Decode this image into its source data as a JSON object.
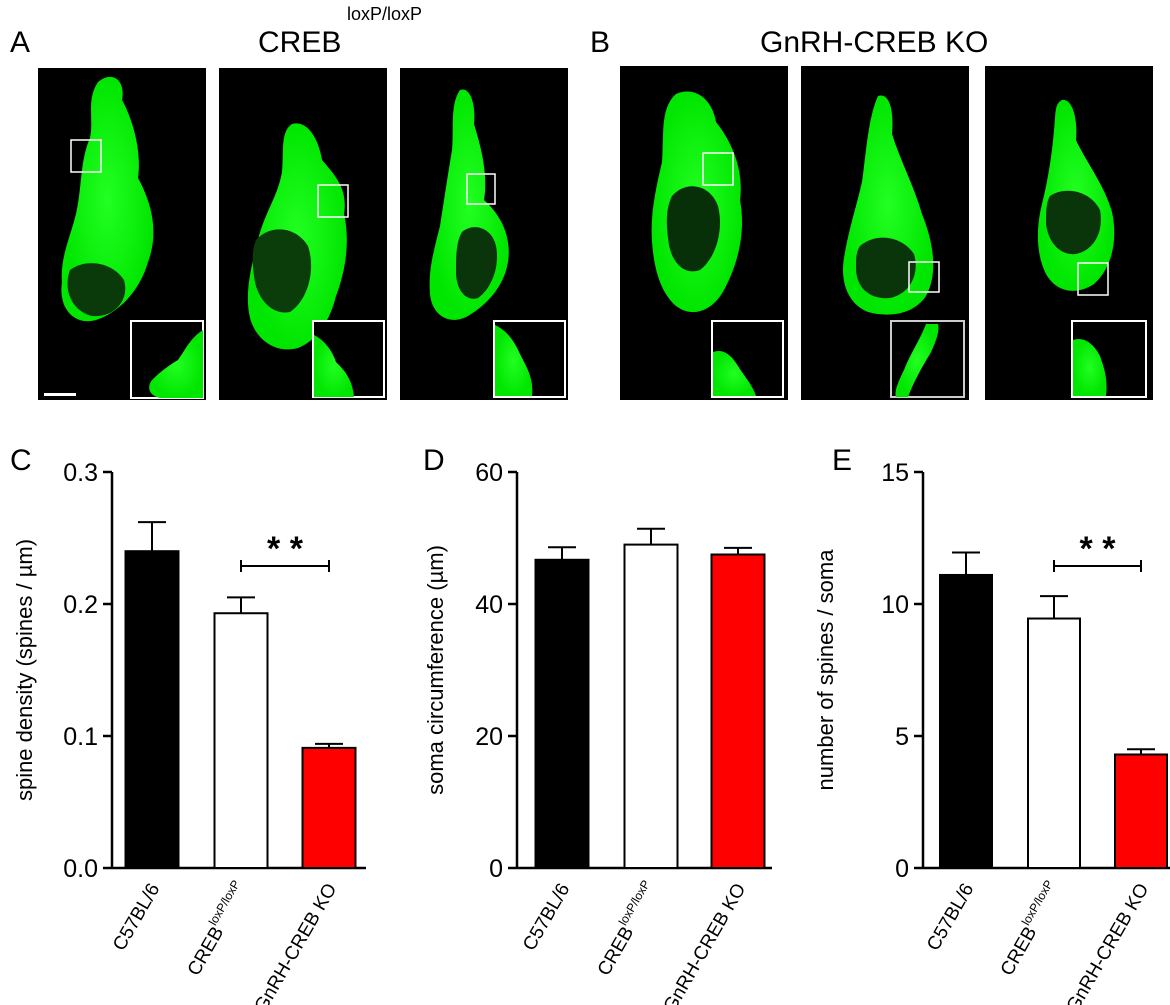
{
  "panel_letters": [
    "A",
    "B",
    "C",
    "D",
    "E"
  ],
  "panelA": {
    "title_main": "CREB",
    "title_sup": "loxP/loxP"
  },
  "panelB": {
    "title": "GnRH-CREB KO"
  },
  "colors": {
    "black": "#000000",
    "white": "#ffffff",
    "red": "#ff0000",
    "green": "#00ff00"
  },
  "chart_data": [
    {
      "panel": "C",
      "type": "bar",
      "categories": [
        {
          "main": "C57BL/6",
          "sup": ""
        },
        {
          "main": "CREB",
          "sup": "loxP/loxP"
        },
        {
          "main": "GnRH-CREB KO",
          "sup": ""
        }
      ],
      "values": [
        0.24,
        0.193,
        0.091
      ],
      "errors": [
        0.022,
        0.012,
        0.003
      ],
      "colors": [
        "#000000",
        "#ffffff",
        "#ff0000"
      ],
      "ylabel": "spine density (spines / µm)",
      "ylim": [
        0,
        0.3
      ],
      "yticks": [
        "0.0",
        "0.1",
        "0.2",
        "0.3"
      ],
      "significance": {
        "from": 1,
        "to": 2,
        "label": "* *"
      }
    },
    {
      "panel": "D",
      "type": "bar",
      "categories": [
        {
          "main": "C57BL/6",
          "sup": ""
        },
        {
          "main": "CREB",
          "sup": "loxP/loxP"
        },
        {
          "main": "GnRH-CREB KO",
          "sup": ""
        }
      ],
      "values": [
        46.7,
        49.0,
        47.5
      ],
      "errors": [
        1.9,
        2.4,
        1.0
      ],
      "colors": [
        "#000000",
        "#ffffff",
        "#ff0000"
      ],
      "ylabel": "soma circumference (µm)",
      "ylim": [
        0,
        60
      ],
      "yticks": [
        "0",
        "20",
        "40",
        "60"
      ],
      "significance": null
    },
    {
      "panel": "E",
      "type": "bar",
      "categories": [
        {
          "main": "C57BL/6",
          "sup": ""
        },
        {
          "main": "CREB",
          "sup": "loxP/loxP"
        },
        {
          "main": "GnRH-CREB KO",
          "sup": ""
        }
      ],
      "values": [
        11.1,
        9.45,
        4.3
      ],
      "errors": [
        0.85,
        0.85,
        0.2
      ],
      "colors": [
        "#000000",
        "#ffffff",
        "#ff0000"
      ],
      "ylabel": "number of spines / soma",
      "ylim": [
        0,
        15
      ],
      "yticks": [
        "0",
        "5",
        "10",
        "15"
      ],
      "significance": {
        "from": 1,
        "to": 2,
        "label": "* *"
      }
    }
  ]
}
